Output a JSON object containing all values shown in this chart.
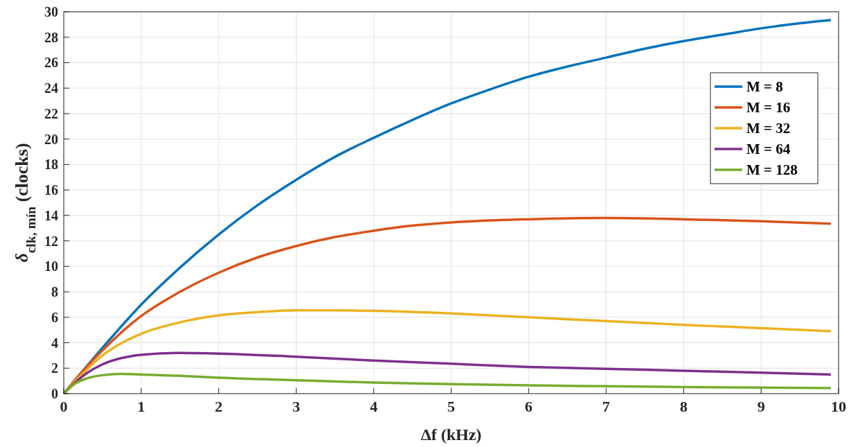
{
  "chart_data": {
    "type": "line",
    "xlabel": "Δf (kHz)",
    "ylabel": "δ$_{clk, mín}$ (clocks)",
    "xlim": [
      0,
      10
    ],
    "xticks": [
      0,
      1,
      2,
      3,
      4,
      5,
      6,
      7,
      8,
      9,
      10
    ],
    "ylim": [
      0,
      30
    ],
    "yticks": [
      0,
      2,
      4,
      6,
      8,
      10,
      12,
      14,
      16,
      18,
      20,
      22,
      24,
      26,
      28,
      30
    ],
    "grid": true,
    "legend": "top right",
    "line_style": "solid",
    "series": [
      {
        "name": "M = 8",
        "color": "#0072bd",
        "x": [
          0,
          0.5,
          1,
          1.5,
          2,
          2.5,
          3,
          3.5,
          4,
          4.5,
          5,
          5.5,
          6,
          6.5,
          7,
          7.5,
          8,
          8.5,
          9,
          9.5,
          9.9
        ],
        "values": [
          0,
          3.6,
          7.0,
          9.9,
          12.5,
          14.8,
          16.8,
          18.6,
          20.1,
          21.5,
          22.8,
          23.9,
          24.9,
          25.7,
          26.4,
          27.1,
          27.7,
          28.2,
          28.7,
          29.1,
          29.35
        ]
      },
      {
        "name": "M = 16",
        "color": "#d95319",
        "x": [
          0,
          0.25,
          0.5,
          1,
          1.5,
          2,
          2.5,
          3,
          3.5,
          4,
          4.5,
          5,
          6,
          7,
          8,
          9,
          9.9
        ],
        "values": [
          0,
          1.8,
          3.4,
          6.1,
          8.0,
          9.5,
          10.7,
          11.6,
          12.3,
          12.8,
          13.2,
          13.45,
          13.7,
          13.8,
          13.7,
          13.55,
          13.35
        ]
      },
      {
        "name": "M = 32",
        "color": "#edb120",
        "x": [
          0,
          0.25,
          0.5,
          1,
          1.5,
          2,
          2.5,
          3,
          3.5,
          4,
          5,
          6,
          7,
          8,
          9,
          9.9
        ],
        "values": [
          0,
          1.6,
          3.0,
          4.7,
          5.6,
          6.15,
          6.4,
          6.55,
          6.55,
          6.5,
          6.3,
          6.0,
          5.7,
          5.4,
          5.15,
          4.9
        ]
      },
      {
        "name": "M = 64",
        "color": "#7e2f8e",
        "x": [
          0,
          0.25,
          0.5,
          0.75,
          1,
          1.5,
          2,
          3,
          4,
          5,
          6,
          7,
          8,
          9,
          9.9
        ],
        "values": [
          0,
          1.4,
          2.3,
          2.8,
          3.05,
          3.2,
          3.15,
          2.9,
          2.6,
          2.35,
          2.1,
          1.95,
          1.8,
          1.65,
          1.5
        ]
      },
      {
        "name": "M = 128",
        "color": "#77ac30",
        "x": [
          0,
          0.15,
          0.3,
          0.5,
          0.75,
          1,
          1.5,
          2,
          3,
          4,
          5,
          6,
          7,
          8,
          9,
          9.9
        ],
        "values": [
          0,
          0.8,
          1.2,
          1.45,
          1.55,
          1.5,
          1.4,
          1.25,
          1.05,
          0.87,
          0.75,
          0.65,
          0.58,
          0.52,
          0.47,
          0.43
        ]
      }
    ]
  }
}
